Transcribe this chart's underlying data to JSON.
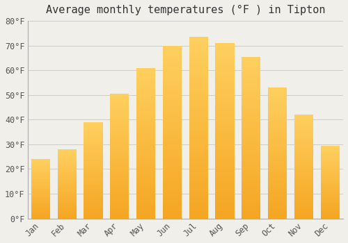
{
  "title": "Average monthly temperatures (°F ) in Tipton",
  "months": [
    "Jan",
    "Feb",
    "Mar",
    "Apr",
    "May",
    "Jun",
    "Jul",
    "Aug",
    "Sep",
    "Oct",
    "Nov",
    "Dec"
  ],
  "values": [
    24,
    28,
    39,
    50.5,
    61,
    70,
    73.5,
    71,
    65.5,
    53,
    42,
    29.5
  ],
  "bar_color_bottom": "#F5A623",
  "bar_color_top": "#FFD060",
  "background_color": "#F0EFE9",
  "plot_bg_color": "#F0EFE9",
  "grid_color": "#CCCCCC",
  "ylim": [
    0,
    80
  ],
  "yticks": [
    0,
    10,
    20,
    30,
    40,
    50,
    60,
    70,
    80
  ],
  "ytick_labels": [
    "0°F",
    "10°F",
    "20°F",
    "30°F",
    "40°F",
    "50°F",
    "60°F",
    "70°F",
    "80°F"
  ],
  "title_fontsize": 11,
  "tick_fontsize": 8.5,
  "bar_width": 0.72,
  "spine_color": "#AAAAAA"
}
